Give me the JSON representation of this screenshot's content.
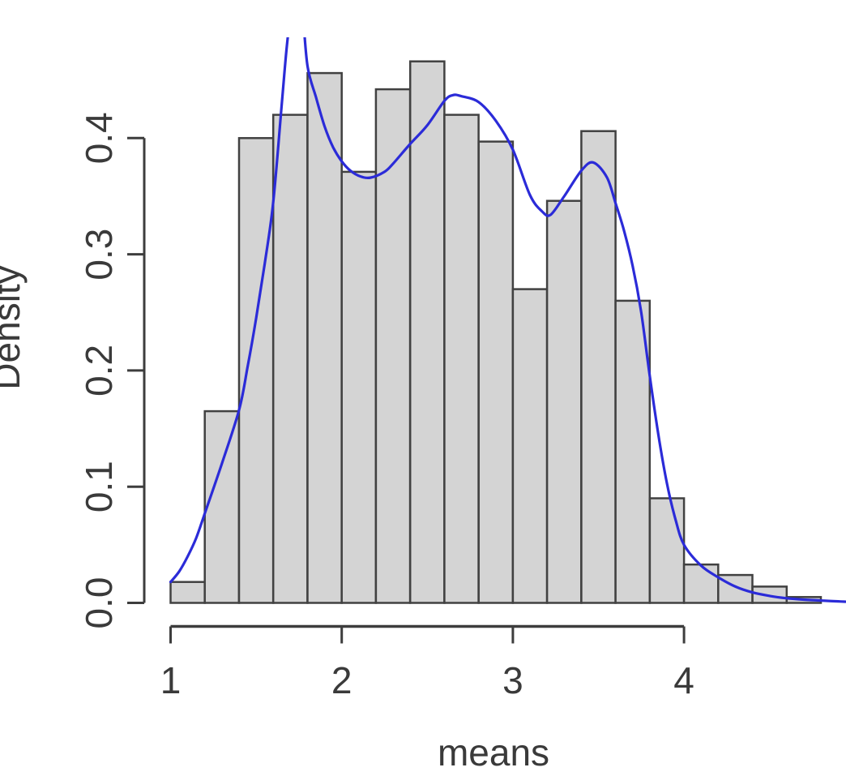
{
  "chart_data": {
    "type": "histogram",
    "title": "",
    "xlabel": "means",
    "ylabel": "Density",
    "grid": false,
    "legend": "none",
    "xlim": [
      0.85,
      4.95
    ],
    "ylim": [
      0.0,
      0.487
    ],
    "x_ticks": {
      "values": [
        1,
        2,
        3,
        4
      ],
      "labels": [
        "1",
        "2",
        "3",
        "4"
      ]
    },
    "y_ticks": {
      "values": [
        0.0,
        0.1,
        0.2,
        0.3,
        0.4
      ],
      "labels": [
        "0.0",
        "0.1",
        "0.2",
        "0.3",
        "0.4"
      ]
    },
    "bins": {
      "start": 1.0,
      "width": 0.2,
      "densities": [
        0.018,
        0.165,
        0.4,
        0.42,
        0.456,
        0.371,
        0.442,
        0.466,
        0.42,
        0.397,
        0.27,
        0.346,
        0.406,
        0.26,
        0.09,
        0.033,
        0.024,
        0.014,
        0.005
      ]
    },
    "density_curve": {
      "name": "kernel-density-estimate",
      "clipped_at_top": true,
      "points": [
        [
          1.0,
          0.018
        ],
        [
          1.05,
          0.027
        ],
        [
          1.1,
          0.04
        ],
        [
          1.15,
          0.056
        ],
        [
          1.2,
          0.077
        ],
        [
          1.3,
          0.12
        ],
        [
          1.4,
          0.166
        ],
        [
          1.45,
          0.203
        ],
        [
          1.5,
          0.245
        ],
        [
          1.55,
          0.292
        ],
        [
          1.6,
          0.345
        ],
        [
          1.65,
          0.43
        ],
        [
          1.68,
          0.48
        ],
        [
          1.71,
          0.515
        ],
        [
          1.74,
          0.525
        ],
        [
          1.77,
          0.51
        ],
        [
          1.8,
          0.462
        ],
        [
          1.85,
          0.435
        ],
        [
          1.9,
          0.41
        ],
        [
          1.95,
          0.392
        ],
        [
          2.0,
          0.38
        ],
        [
          2.05,
          0.372
        ],
        [
          2.11,
          0.367
        ],
        [
          2.17,
          0.366
        ],
        [
          2.25,
          0.371
        ],
        [
          2.3,
          0.378
        ],
        [
          2.4,
          0.395
        ],
        [
          2.5,
          0.411
        ],
        [
          2.6,
          0.432
        ],
        [
          2.65,
          0.437
        ],
        [
          2.7,
          0.436
        ],
        [
          2.8,
          0.431
        ],
        [
          2.9,
          0.415
        ],
        [
          3.0,
          0.39
        ],
        [
          3.1,
          0.351
        ],
        [
          3.17,
          0.337
        ],
        [
          3.22,
          0.334
        ],
        [
          3.3,
          0.35
        ],
        [
          3.4,
          0.372
        ],
        [
          3.47,
          0.379
        ],
        [
          3.55,
          0.366
        ],
        [
          3.6,
          0.344
        ],
        [
          3.65,
          0.32
        ],
        [
          3.7,
          0.29
        ],
        [
          3.75,
          0.25
        ],
        [
          3.8,
          0.195
        ],
        [
          3.85,
          0.145
        ],
        [
          3.9,
          0.103
        ],
        [
          3.95,
          0.072
        ],
        [
          4.0,
          0.05
        ],
        [
          4.1,
          0.032
        ],
        [
          4.2,
          0.022
        ],
        [
          4.3,
          0.014
        ],
        [
          4.4,
          0.009
        ],
        [
          4.5,
          0.006
        ],
        [
          4.6,
          0.004
        ],
        [
          4.7,
          0.0028
        ],
        [
          4.8,
          0.002
        ],
        [
          4.9,
          0.0013
        ],
        [
          4.95,
          0.001
        ]
      ]
    },
    "colors": {
      "bar_fill": "#d4d4d4",
      "bar_border": "#414141",
      "curve": "#2b2bd8",
      "axis": "#3d3d3d",
      "text": "#3a3a3a",
      "background": "#ffffff"
    }
  }
}
